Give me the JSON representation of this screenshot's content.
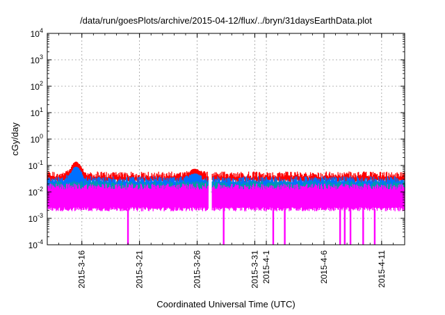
{
  "chart_data": {
    "type": "area",
    "title": "/data/run/goesPlots/archive/2015-04-12/flux/../bryn/31daysEarthData.plot",
    "xlabel": "Coordinated Universal Time (UTC)",
    "ylabel": "cGy/day",
    "yscale": "log",
    "ylim": [
      0.0001,
      10000
    ],
    "xlim": [
      "2015-03-13",
      "2015-04-13"
    ],
    "grid": true,
    "legend": "none",
    "y_ticks": [
      {
        "base": "10",
        "exp": "4",
        "value": 10000
      },
      {
        "base": "10",
        "exp": "3",
        "value": 1000
      },
      {
        "base": "10",
        "exp": "2",
        "value": 100
      },
      {
        "base": "10",
        "exp": "1",
        "value": 10
      },
      {
        "base": "10",
        "exp": "0",
        "value": 1
      },
      {
        "base": "10",
        "exp": "-1",
        "value": 0.1
      },
      {
        "base": "10",
        "exp": "-2",
        "value": 0.01
      },
      {
        "base": "10",
        "exp": "-3",
        "value": 0.001
      },
      {
        "base": "10",
        "exp": "-4",
        "value": 0.0001
      }
    ],
    "x_ticks": [
      {
        "label": "2015-3-16",
        "date": "2015-03-16"
      },
      {
        "label": "2015-3-21",
        "date": "2015-03-21"
      },
      {
        "label": "2015-3-26",
        "date": "2015-03-26"
      },
      {
        "label": "2015-3-31",
        "date": "2015-03-31"
      },
      {
        "label": "2015-4-1",
        "date": "2015-04-01"
      },
      {
        "label": "2015-4-6",
        "date": "2015-04-06"
      },
      {
        "label": "2015-4-11",
        "date": "2015-04-11"
      }
    ],
    "series": [
      {
        "color": "#ff0000",
        "low": 0.025,
        "high": 0.045,
        "peaks": [
          {
            "date": "2015-03-15.5",
            "value": 0.14
          },
          {
            "date": "2015-03-25.8",
            "value": 0.075
          }
        ]
      },
      {
        "color": "#0070ff",
        "low": 0.013,
        "high": 0.03,
        "peaks": [
          {
            "date": "2015-03-15.5",
            "value": 0.09
          },
          {
            "date": "2015-03-25.8",
            "value": 0.05
          }
        ]
      },
      {
        "color": "#00a0a0",
        "low": 0.009,
        "high": 0.02
      },
      {
        "color": "#ff00ff",
        "low": 0.0022,
        "high": 0.016,
        "dips": [
          {
            "date": "2015-03-20.0",
            "value": 0.0001
          },
          {
            "date": "2015-03-28.3",
            "value": 0.0001
          },
          {
            "date": "2015-04-01.6",
            "value": 0.0001
          },
          {
            "date": "2015-04-02.6",
            "value": 0.0001
          },
          {
            "date": "2015-04-07.4",
            "value": 0.0001
          },
          {
            "date": "2015-04-07.8",
            "value": 0.0001
          },
          {
            "date": "2015-04-08.3",
            "value": 0.0001
          },
          {
            "date": "2015-04-09.4",
            "value": 0.0001
          },
          {
            "date": "2015-04-10.4",
            "value": 0.0001
          }
        ]
      }
    ],
    "gaps": [
      {
        "from": "2015-03-27.0",
        "to": "2015-03-27.3"
      }
    ]
  }
}
